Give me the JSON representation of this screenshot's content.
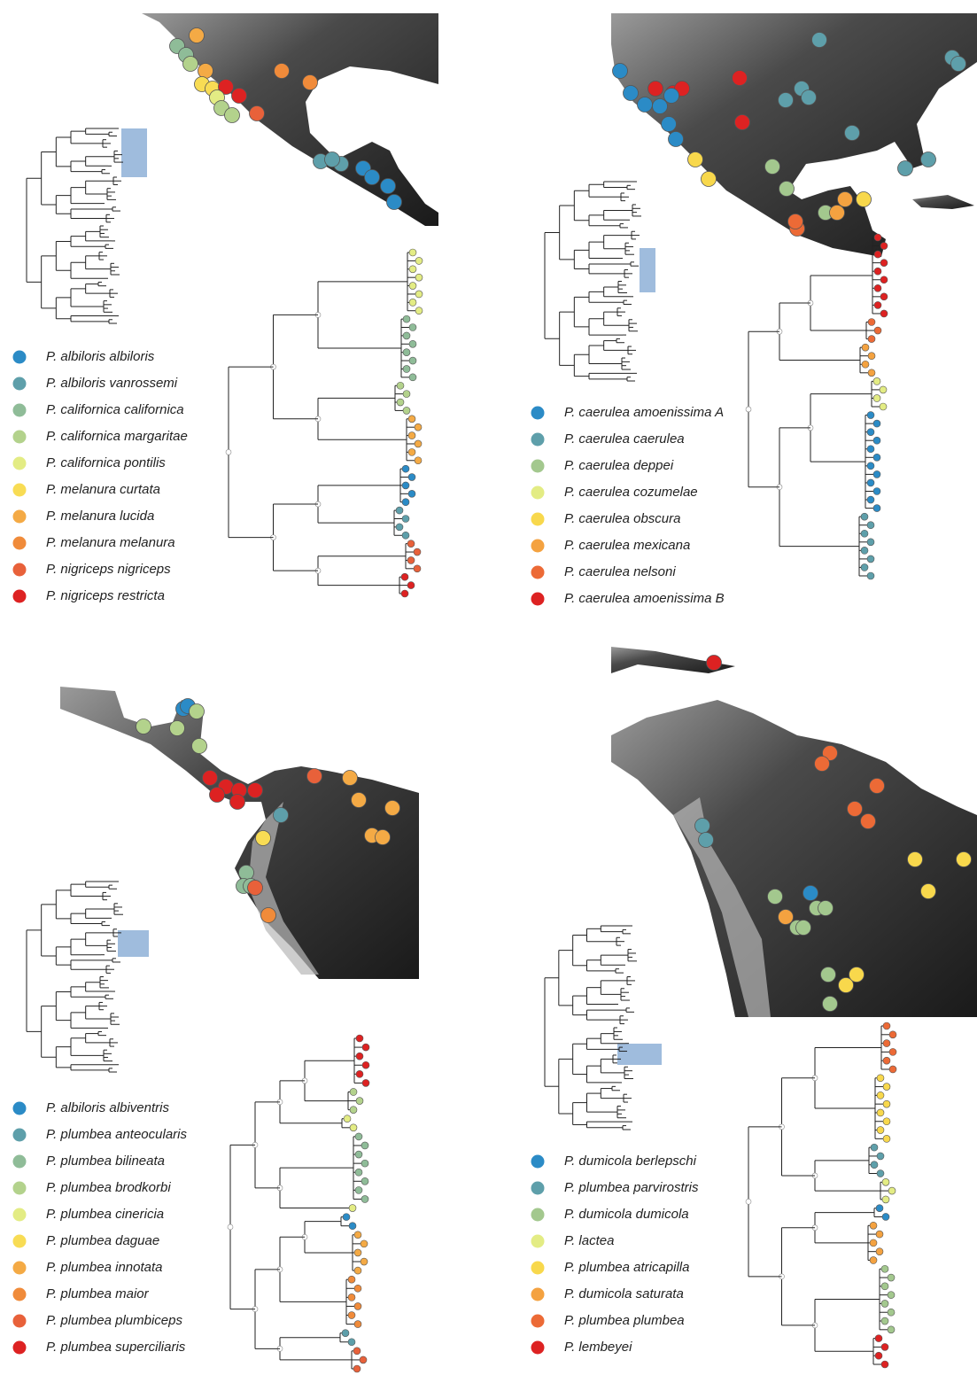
{
  "panels": [
    {
      "legend": [
        {
          "label": "P. albiloris albiloris",
          "color": "#2b8bc6"
        },
        {
          "label": "P. albiloris vanrossemi",
          "color": "#5e9faa"
        },
        {
          "label": "P. californica californica",
          "color": "#8fbc98"
        },
        {
          "label": "P. californica margaritae",
          "color": "#b3d28c"
        },
        {
          "label": "P. californica pontilis",
          "color": "#e3ec84"
        },
        {
          "label": "P. melanura curtata",
          "color": "#f8dc54"
        },
        {
          "label": "P. melanura lucida",
          "color": "#f4aa45"
        },
        {
          "label": "P. melanura melanura",
          "color": "#f08b3a"
        },
        {
          "label": "P. nigriceps nigriceps",
          "color": "#e8613a"
        },
        {
          "label": "P. nigriceps restricta",
          "color": "#dd2222"
        }
      ]
    },
    {
      "legend": [
        {
          "label": "P. caerulea amoenissima A",
          "color": "#2b8bc6"
        },
        {
          "label": "P. caerulea caerulea",
          "color": "#5e9faa"
        },
        {
          "label": "P. caerulea deppei",
          "color": "#a3c88e"
        },
        {
          "label": "P. caerulea cozumelae",
          "color": "#e3ec84"
        },
        {
          "label": "P. caerulea obscura",
          "color": "#f8d84c"
        },
        {
          "label": "P. caerulea mexicana",
          "color": "#f4a240"
        },
        {
          "label": "P. caerulea nelsoni",
          "color": "#ec6a36"
        },
        {
          "label": "P. caerulea amoenissima B",
          "color": "#dd2222"
        }
      ]
    },
    {
      "legend": [
        {
          "label": "P. albiloris albiventris",
          "color": "#2b8bc6"
        },
        {
          "label": "P. plumbea anteocularis",
          "color": "#5e9faa"
        },
        {
          "label": "P. plumbea bilineata",
          "color": "#8fbc98"
        },
        {
          "label": "P. plumbea brodkorbi",
          "color": "#b3d28c"
        },
        {
          "label": "P. plumbea cinericia",
          "color": "#e3ec84"
        },
        {
          "label": "P. plumbea daguae",
          "color": "#f8dc54"
        },
        {
          "label": "P. plumbea innotata",
          "color": "#f4aa45"
        },
        {
          "label": "P. plumbea maior",
          "color": "#f08b3a"
        },
        {
          "label": "P. plumbea plumbiceps",
          "color": "#e8613a"
        },
        {
          "label": "P. plumbea superciliaris",
          "color": "#dd2222"
        }
      ]
    },
    {
      "legend": [
        {
          "label": "P. dumicola berlepschi",
          "color": "#2b8bc6"
        },
        {
          "label": "P. plumbea parvirostris",
          "color": "#5e9faa"
        },
        {
          "label": "P. dumicola dumicola",
          "color": "#a3c88e"
        },
        {
          "label": "P. lactea",
          "color": "#e3ec84"
        },
        {
          "label": "P. plumbea atricapilla",
          "color": "#f8d84c"
        },
        {
          "label": "P. dumicola saturata",
          "color": "#f4a240"
        },
        {
          "label": "P. plumbea plumbea",
          "color": "#ec6a36"
        },
        {
          "label": "P. lembeyei",
          "color": "#dd2222"
        }
      ]
    }
  ]
}
